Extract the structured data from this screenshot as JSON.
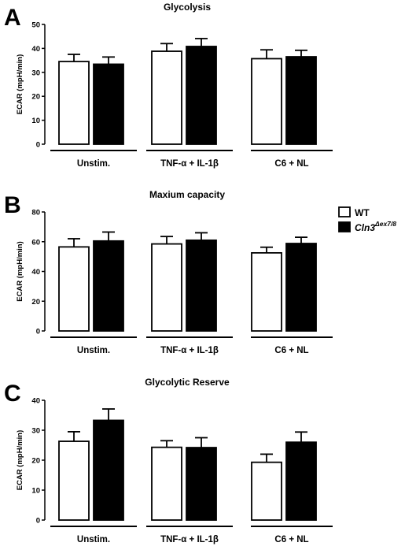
{
  "legend": {
    "position": "right",
    "items": [
      {
        "name": "WT",
        "fill": "#ffffff"
      },
      {
        "name": "Cln3",
        "superscript": "Δex7/8",
        "fill": "#000000"
      }
    ]
  },
  "chart_data": [
    {
      "panel": "A",
      "type": "bar",
      "title": "Glycolysis",
      "ylabel": "ECAR (mpH/min)",
      "ylim": [
        0,
        50
      ],
      "yticks": [
        0,
        10,
        20,
        30,
        40,
        50
      ],
      "categories": [
        "Unstim.",
        "TNF-α + IL-1β",
        "C6 + NL"
      ],
      "series": [
        {
          "name": "WT",
          "values": [
            34.5,
            38.8,
            35.7
          ],
          "errors": [
            3.0,
            3.2,
            3.7
          ]
        },
        {
          "name": "Cln3",
          "values": [
            33.4,
            40.8,
            36.5
          ],
          "errors": [
            3.0,
            3.3,
            2.7
          ]
        }
      ]
    },
    {
      "panel": "B",
      "type": "bar",
      "title": "Maxium capacity",
      "ylabel": "ECAR (mpH/min)",
      "ylim": [
        0,
        80
      ],
      "yticks": [
        0,
        20,
        40,
        60,
        80
      ],
      "categories": [
        "Unstim.",
        "TNF-α + IL-1β",
        "C6 + NL"
      ],
      "series": [
        {
          "name": "WT",
          "values": [
            56.5,
            58.5,
            52.5
          ],
          "errors": [
            5.5,
            5.0,
            3.8
          ]
        },
        {
          "name": "Cln3",
          "values": [
            60.5,
            61.0,
            58.8
          ],
          "errors": [
            6.0,
            5.0,
            4.2
          ]
        }
      ]
    },
    {
      "panel": "C",
      "type": "bar",
      "title": "Glycolytic Reserve",
      "ylabel": "ECAR (mpH/min)",
      "ylim": [
        0,
        40
      ],
      "yticks": [
        0,
        10,
        20,
        30,
        40
      ],
      "categories": [
        "Unstim.",
        "TNF-α + IL-1β",
        "C6 + NL"
      ],
      "series": [
        {
          "name": "WT",
          "values": [
            26.3,
            24.3,
            19.3
          ],
          "errors": [
            3.2,
            2.2,
            2.7
          ]
        },
        {
          "name": "Cln3",
          "values": [
            33.3,
            24.2,
            26.0
          ],
          "errors": [
            3.8,
            3.3,
            3.4
          ]
        }
      ]
    }
  ]
}
